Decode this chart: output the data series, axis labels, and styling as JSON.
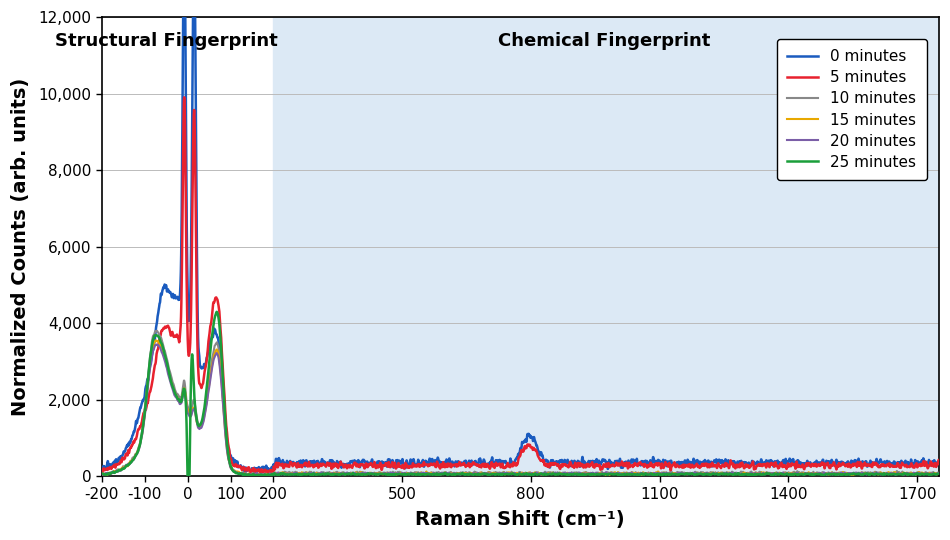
{
  "xlabel": "Raman Shift (cm⁻¹)",
  "ylabel": "Normalized Counts (arb. units)",
  "xlim": [
    -200,
    1750
  ],
  "ylim": [
    0,
    12000
  ],
  "yticks": [
    0,
    2000,
    4000,
    6000,
    8000,
    10000,
    12000
  ],
  "ytick_labels": [
    "0",
    "2,000",
    "4,000",
    "6,000",
    "8,000",
    "10,000",
    "12,000"
  ],
  "xticks": [
    -200,
    -100,
    0,
    100,
    200,
    500,
    800,
    1100,
    1400,
    1700
  ],
  "structural_label": "Structural Fingerprint",
  "chemical_label": "Chemical Fingerprint",
  "chemical_bg_color": "#dce9f5",
  "series": [
    {
      "label": "0 minutes",
      "color": "#1a5bbf",
      "lw": 1.8
    },
    {
      "label": "5 minutes",
      "color": "#e8212e",
      "lw": 1.8
    },
    {
      "label": "10 minutes",
      "color": "#888888",
      "lw": 1.5
    },
    {
      "label": "15 minutes",
      "color": "#e8a800",
      "lw": 1.5
    },
    {
      "label": "20 minutes",
      "color": "#7b5ea7",
      "lw": 1.5
    },
    {
      "label": "25 minutes",
      "color": "#1a9e3a",
      "lw": 1.8
    }
  ],
  "grid_color": "#bbbbbb",
  "legend_fontsize": 11,
  "axis_label_fontsize": 14,
  "tick_fontsize": 11,
  "region_label_fontsize": 13
}
